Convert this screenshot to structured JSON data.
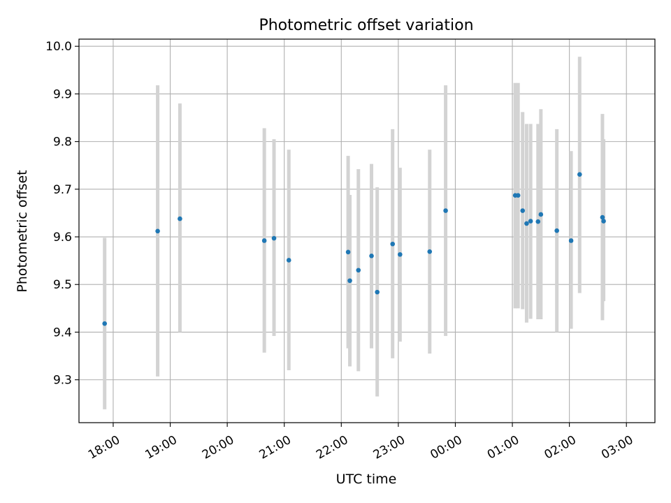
{
  "chart_data": {
    "type": "scatter",
    "title": "Photometric offset variation",
    "xlabel": "UTC time",
    "ylabel": "Photometric offset",
    "grid": true,
    "x_unit": "hours since 18:00 UTC",
    "xlim": [
      -0.6,
      9.5
    ],
    "ylim": [
      9.21,
      10.015
    ],
    "x_ticks": [
      0,
      1,
      2,
      3,
      4,
      5,
      6,
      7,
      8,
      9
    ],
    "x_tick_labels": [
      "18:00",
      "19:00",
      "20:00",
      "21:00",
      "22:00",
      "23:00",
      "00:00",
      "01:00",
      "02:00",
      "03:00"
    ],
    "y_ticks": [
      9.3,
      9.4,
      9.5,
      9.6,
      9.7,
      9.8,
      9.9,
      10.0
    ],
    "y_tick_labels": [
      "9.3",
      "9.4",
      "9.5",
      "9.6",
      "9.7",
      "9.8",
      "9.9",
      "10.0"
    ],
    "colors": {
      "points": "#1f77b4",
      "errorbars": "#d3d3d3",
      "grid": "#b0b0b0"
    },
    "series": [
      {
        "name": "Photometric offset",
        "points": [
          {
            "x": -0.15,
            "y": 9.418,
            "ylow": 9.238,
            "yhigh": 9.598
          },
          {
            "x": 0.78,
            "y": 9.612,
            "ylow": 9.307,
            "yhigh": 9.918
          },
          {
            "x": 1.17,
            "y": 9.638,
            "ylow": 9.4,
            "yhigh": 9.88
          },
          {
            "x": 2.65,
            "y": 9.592,
            "ylow": 9.357,
            "yhigh": 9.828
          },
          {
            "x": 2.82,
            "y": 9.597,
            "ylow": 9.392,
            "yhigh": 9.805
          },
          {
            "x": 3.08,
            "y": 9.551,
            "ylow": 9.32,
            "yhigh": 9.783
          },
          {
            "x": 4.12,
            "y": 9.568,
            "ylow": 9.366,
            "yhigh": 9.77
          },
          {
            "x": 4.15,
            "y": 9.508,
            "ylow": 9.328,
            "yhigh": 9.688
          },
          {
            "x": 4.3,
            "y": 9.53,
            "ylow": 9.318,
            "yhigh": 9.742
          },
          {
            "x": 4.53,
            "y": 9.56,
            "ylow": 9.366,
            "yhigh": 9.753
          },
          {
            "x": 4.63,
            "y": 9.484,
            "ylow": 9.265,
            "yhigh": 9.704
          },
          {
            "x": 4.9,
            "y": 9.585,
            "ylow": 9.345,
            "yhigh": 9.826
          },
          {
            "x": 5.03,
            "y": 9.563,
            "ylow": 9.38,
            "yhigh": 9.745
          },
          {
            "x": 5.55,
            "y": 9.569,
            "ylow": 9.355,
            "yhigh": 9.783
          },
          {
            "x": 5.83,
            "y": 9.655,
            "ylow": 9.392,
            "yhigh": 9.918
          },
          {
            "x": 7.05,
            "y": 9.687,
            "ylow": 9.45,
            "yhigh": 9.923
          },
          {
            "x": 7.1,
            "y": 9.687,
            "ylow": 9.45,
            "yhigh": 9.923
          },
          {
            "x": 7.18,
            "y": 9.655,
            "ylow": 9.448,
            "yhigh": 9.862
          },
          {
            "x": 7.25,
            "y": 9.628,
            "ylow": 9.42,
            "yhigh": 9.837
          },
          {
            "x": 7.32,
            "y": 9.633,
            "ylow": 9.428,
            "yhigh": 9.837
          },
          {
            "x": 7.45,
            "y": 9.632,
            "ylow": 9.427,
            "yhigh": 9.837
          },
          {
            "x": 7.5,
            "y": 9.647,
            "ylow": 9.427,
            "yhigh": 9.868
          },
          {
            "x": 7.78,
            "y": 9.613,
            "ylow": 9.4,
            "yhigh": 9.826
          },
          {
            "x": 8.03,
            "y": 9.592,
            "ylow": 9.407,
            "yhigh": 9.78
          },
          {
            "x": 8.18,
            "y": 9.731,
            "ylow": 9.482,
            "yhigh": 9.978
          },
          {
            "x": 8.58,
            "y": 9.641,
            "ylow": 9.425,
            "yhigh": 9.858
          },
          {
            "x": 8.6,
            "y": 9.633,
            "ylow": 9.465,
            "yhigh": 9.805
          }
        ]
      }
    ]
  }
}
